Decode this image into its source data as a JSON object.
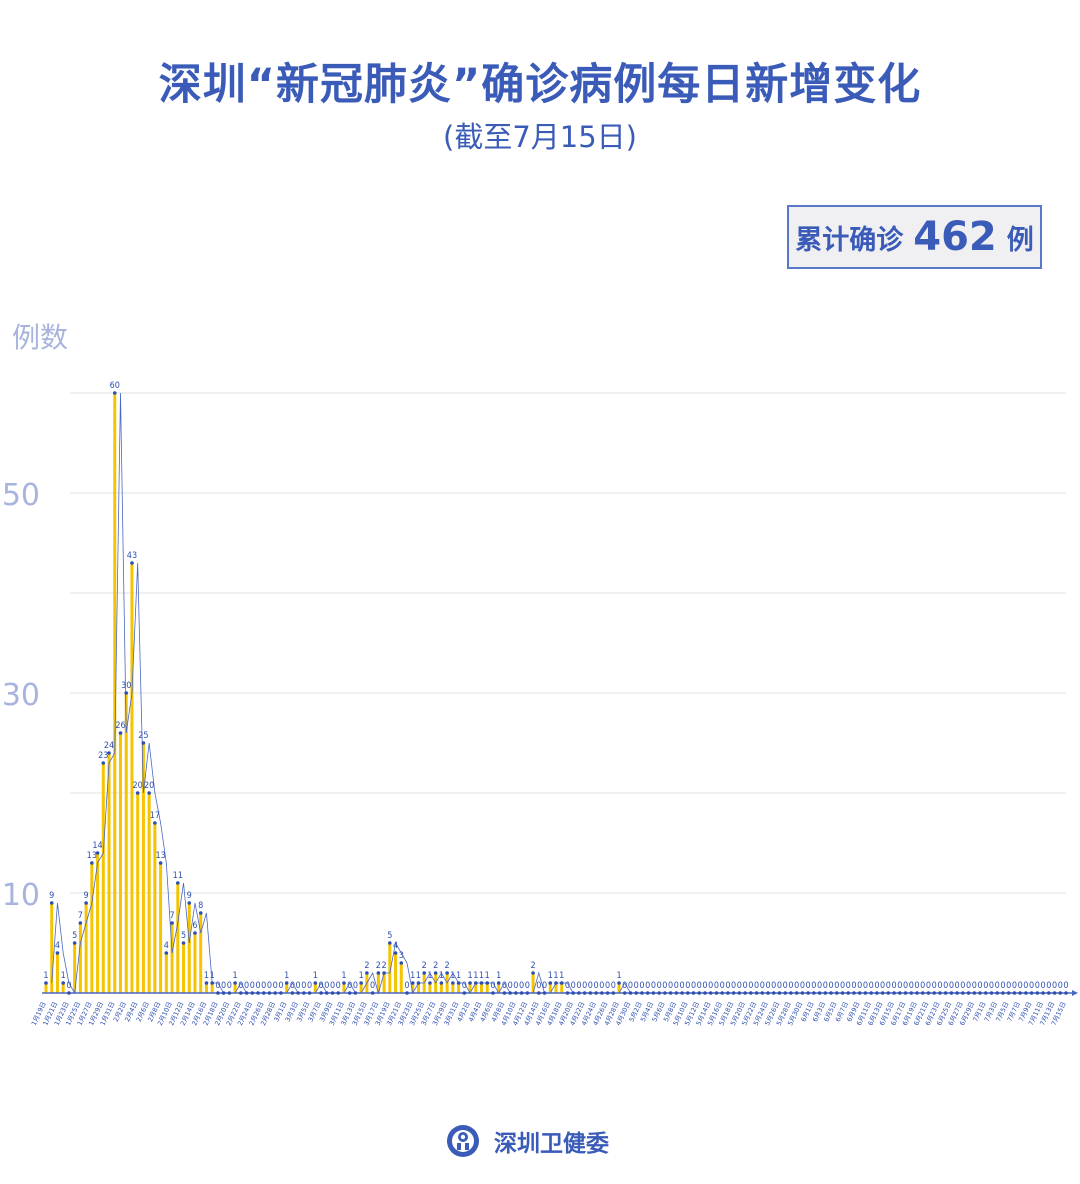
{
  "header": {
    "title": "深圳“新冠肺炎”确诊病例每日新增变化",
    "subtitle": "(截至7月15日)"
  },
  "total": {
    "label": "累计确诊",
    "value": "462",
    "unit": "例"
  },
  "footer": {
    "org": "深圳卫健委",
    "logo_icon": "shenzhen-health-commission-seal"
  },
  "colors": {
    "title": "#3a5bb8",
    "bar": "#f5c400",
    "line": "#4a67c2",
    "point": "#2f4fb0",
    "grid": "#e2e2e2",
    "axis_label": "#a8b4de"
  },
  "chart_data": {
    "type": "bar",
    "title": "深圳“新冠肺炎”确诊病例每日新增变化",
    "ylabel": "例数",
    "xlabel": "",
    "ylim": [
      0,
      60
    ],
    "yticks_labeled": [
      10,
      30,
      50
    ],
    "gridlines": [
      10,
      20,
      30,
      40,
      50,
      60
    ],
    "grid": true,
    "data_labels": true,
    "overlay": "line",
    "categories": [
      "1月19日",
      "1月20日",
      "1月21日",
      "1月22日",
      "1月23日",
      "1月24日",
      "1月25日",
      "1月26日",
      "1月27日",
      "1月28日",
      "1月29日",
      "1月30日",
      "1月31日",
      "2月1日",
      "2月2日",
      "2月3日",
      "2月4日",
      "2月5日",
      "2月6日",
      "2月7日",
      "2月8日",
      "2月9日",
      "2月10日",
      "2月11日",
      "2月12日",
      "2月13日",
      "2月14日",
      "2月15日",
      "2月16日",
      "2月17日",
      "2月18日",
      "2月19日",
      "2月20日",
      "2月21日",
      "2月22日",
      "2月23日",
      "2月24日",
      "2月25日",
      "2月26日",
      "2月27日",
      "2月28日",
      "2月29日",
      "3月1日",
      "3月2日",
      "3月3日",
      "3月4日",
      "3月5日",
      "3月6日",
      "3月7日",
      "3月8日",
      "3月9日",
      "3月10日",
      "3月11日",
      "3月12日",
      "3月13日",
      "3月14日",
      "3月15日",
      "3月16日",
      "3月17日",
      "3月18日",
      "3月19日",
      "3月20日",
      "3月21日",
      "3月22日",
      "3月23日",
      "3月24日",
      "3月25日",
      "3月26日",
      "3月27日",
      "3月28日",
      "3月29日",
      "3月30日",
      "3月31日",
      "4月1日",
      "4月2日",
      "4月3日",
      "4月4日",
      "4月5日",
      "4月6日",
      "4月7日",
      "4月8日",
      "4月9日",
      "4月10日",
      "4月11日",
      "4月12日",
      "4月13日",
      "4月14日",
      "4月15日",
      "4月16日",
      "4月17日",
      "4月18日",
      "4月19日",
      "4月20日",
      "4月21日",
      "4月22日",
      "4月23日",
      "4月24日",
      "4月25日",
      "4月26日",
      "4月27日",
      "4月28日",
      "4月29日",
      "4月30日",
      "5月1日",
      "5月2日",
      "5月3日",
      "5月4日",
      "5月5日",
      "5月6日",
      "5月7日",
      "5月8日",
      "5月9日",
      "5月10日",
      "5月11日",
      "5月12日",
      "5月13日",
      "5月14日",
      "5月15日",
      "5月16日",
      "5月17日",
      "5月18日",
      "5月19日",
      "5月20日",
      "5月21日",
      "5月22日",
      "5月23日",
      "5月24日",
      "5月25日",
      "5月26日",
      "5月27日",
      "5月28日",
      "5月29日",
      "5月30日",
      "5月31日",
      "6月1日",
      "6月2日",
      "6月3日",
      "6月4日",
      "6月5日",
      "6月6日",
      "6月7日",
      "6月8日",
      "6月9日",
      "6月10日",
      "6月11日",
      "6月12日",
      "6月13日",
      "6月14日",
      "6月15日",
      "6月16日",
      "6月17日",
      "6月18日",
      "6月19日",
      "6月20日",
      "6月21日",
      "6月22日",
      "6月23日",
      "6月24日",
      "6月25日",
      "6月26日",
      "6月27日",
      "6月28日",
      "6月29日",
      "6月30日",
      "7月1日",
      "7月2日",
      "7月3日",
      "7月4日",
      "7月5日",
      "7月6日",
      "7月7日",
      "7月8日",
      "7月9日",
      "7月10日",
      "7月11日",
      "7月12日",
      "7月13日",
      "7月14日",
      "7月15日"
    ],
    "values": [
      1,
      9,
      4,
      1,
      0,
      5,
      7,
      9,
      13,
      14,
      23,
      24,
      60,
      26,
      30,
      43,
      20,
      25,
      20,
      17,
      13,
      4,
      7,
      11,
      5,
      9,
      6,
      8,
      1,
      1,
      0,
      0,
      0,
      1,
      0,
      0,
      0,
      0,
      0,
      0,
      0,
      0,
      1,
      0,
      0,
      0,
      0,
      1,
      0,
      0,
      0,
      0,
      1,
      0,
      0,
      1,
      2,
      0,
      2,
      2,
      5,
      4,
      3,
      0,
      1,
      1,
      2,
      1,
      2,
      1,
      2,
      1,
      1,
      0,
      1,
      1,
      1,
      1,
      0,
      1,
      0,
      0,
      0,
      0,
      0,
      2,
      0,
      0,
      1,
      1,
      1,
      0,
      0,
      0,
      0,
      0,
      0,
      0,
      0,
      0,
      1,
      0,
      0,
      0,
      0,
      0,
      0,
      0,
      0,
      0,
      0,
      0,
      0,
      0,
      0,
      0,
      0,
      0,
      0,
      0,
      0,
      0,
      0,
      0,
      0,
      0,
      0,
      0,
      0,
      0,
      0,
      0,
      0,
      0,
      0,
      0,
      0,
      0,
      0,
      0,
      0,
      0,
      0,
      0,
      0,
      0,
      0,
      0,
      0,
      0,
      0,
      0,
      0,
      0,
      0,
      0,
      0,
      0,
      0,
      0,
      0,
      0,
      0,
      0,
      0,
      0,
      0,
      0,
      0,
      0,
      0,
      0,
      0,
      0,
      0,
      0,
      0,
      0,
      0
    ]
  }
}
